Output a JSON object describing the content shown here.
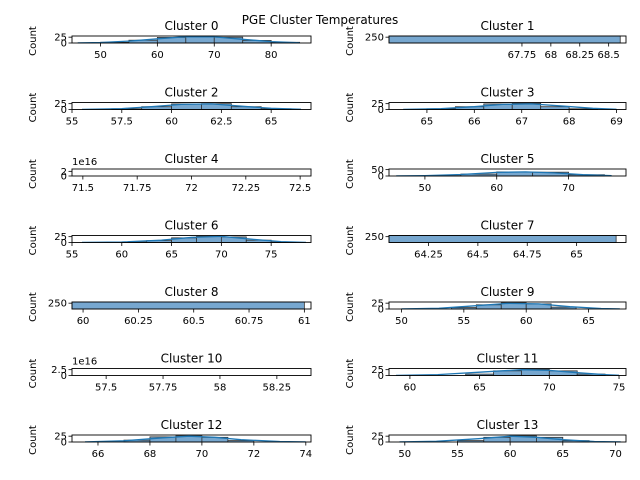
{
  "figure": {
    "suptitle": "PGE Cluster Temperatures"
  },
  "colors": {
    "bar_fill": "#77a7cf",
    "bar_stroke": "#303030",
    "kde": "#1f77b4",
    "axes": "#000000"
  },
  "chart_data": [
    {
      "type": "bar",
      "title": "Cluster 0",
      "ylabel": "Count",
      "xlim": [
        45,
        87
      ],
      "ylim": [
        0,
        30
      ],
      "xticks": [
        50,
        60,
        70,
        80
      ],
      "yticks": [
        0,
        25
      ],
      "bins": [
        [
          50,
          55
        ],
        [
          55,
          60
        ],
        [
          60,
          65
        ],
        [
          65,
          70
        ],
        [
          70,
          75
        ],
        [
          75,
          80
        ],
        [
          80,
          85
        ]
      ],
      "values": [
        3,
        12,
        24,
        29,
        25,
        11,
        3
      ],
      "kde": [
        [
          46,
          0.5
        ],
        [
          50,
          2
        ],
        [
          55,
          8
        ],
        [
          60,
          18
        ],
        [
          65,
          27
        ],
        [
          70,
          26
        ],
        [
          75,
          16
        ],
        [
          80,
          6
        ],
        [
          85,
          1
        ]
      ]
    },
    {
      "type": "bar",
      "title": "Cluster 1",
      "ylabel": "Count",
      "xlim": [
        66.6,
        68.65
      ],
      "ylim": [
        0,
        300
      ],
      "xticks": [
        67.75,
        68.0,
        68.25,
        68.5
      ],
      "yticks": [
        250
      ],
      "bins": [
        [
          66.6,
          68.6
        ]
      ],
      "values": [
        300
      ],
      "kde": []
    },
    {
      "type": "bar",
      "title": "Cluster 2",
      "ylabel": "Count",
      "xlim": [
        55,
        67
      ],
      "ylim": [
        0,
        30
      ],
      "xticks": [
        55.0,
        57.5,
        60.0,
        62.5,
        65.0
      ],
      "yticks": [
        0,
        25
      ],
      "bins": [
        [
          57,
          58.5
        ],
        [
          58.5,
          60
        ],
        [
          60,
          61.5
        ],
        [
          61.5,
          63
        ],
        [
          63,
          64.5
        ],
        [
          64.5,
          66
        ]
      ],
      "values": [
        3,
        12,
        24,
        25,
        12,
        3
      ],
      "kde": [
        [
          55.5,
          0.5
        ],
        [
          57.5,
          4
        ],
        [
          59,
          12
        ],
        [
          60.5,
          22
        ],
        [
          62,
          24
        ],
        [
          63.5,
          14
        ],
        [
          65,
          5
        ],
        [
          66.5,
          1
        ]
      ]
    },
    {
      "type": "bar",
      "title": "Cluster 3",
      "ylabel": "Count",
      "xlim": [
        64.2,
        69.2
      ],
      "ylim": [
        0,
        30
      ],
      "xticks": [
        65,
        66,
        67,
        68,
        69
      ],
      "yticks": [
        0,
        25
      ],
      "bins": [
        [
          65,
          65.6
        ],
        [
          65.6,
          66.2
        ],
        [
          66.2,
          66.8
        ],
        [
          66.8,
          67.4
        ],
        [
          67.4,
          68
        ],
        [
          68,
          68.6
        ]
      ],
      "values": [
        3,
        12,
        24,
        26,
        12,
        3
      ],
      "kde": [
        [
          64.5,
          0.5
        ],
        [
          65.3,
          4
        ],
        [
          66,
          12
        ],
        [
          66.6,
          22
        ],
        [
          67.2,
          24
        ],
        [
          67.9,
          14
        ],
        [
          68.5,
          5
        ],
        [
          69,
          1
        ]
      ]
    },
    {
      "type": "bar",
      "title": "Cluster 4",
      "ylabel": "Count",
      "xlim": [
        71.45,
        72.55
      ],
      "ylim": [
        0,
        3e+16
      ],
      "xticks": [
        71.5,
        71.75,
        72.0,
        72.25,
        72.5
      ],
      "yticks": [
        0,
        2
      ],
      "offset_text": "1e16",
      "bins": [],
      "values": [],
      "kde": []
    },
    {
      "type": "bar",
      "title": "Cluster 5",
      "ylabel": "Count",
      "xlim": [
        45,
        78
      ],
      "ylim": [
        0,
        55
      ],
      "xticks": [
        50,
        60,
        70
      ],
      "yticks": [
        0,
        50
      ],
      "bins": [
        [
          50,
          55
        ],
        [
          55,
          60
        ],
        [
          60,
          65
        ],
        [
          65,
          70
        ],
        [
          70,
          75
        ]
      ],
      "values": [
        3,
        15,
        32,
        30,
        10
      ],
      "kde": [
        [
          46,
          0.5
        ],
        [
          50,
          3
        ],
        [
          55,
          12
        ],
        [
          60,
          28
        ],
        [
          64,
          32
        ],
        [
          68,
          24
        ],
        [
          72,
          10
        ],
        [
          76,
          2
        ]
      ]
    },
    {
      "type": "bar",
      "title": "Cluster 6",
      "ylabel": "Count",
      "xlim": [
        55,
        79
      ],
      "ylim": [
        0,
        30
      ],
      "xticks": [
        55,
        60,
        65,
        70,
        75
      ],
      "yticks": [
        0,
        25
      ],
      "bins": [
        [
          60,
          62.5
        ],
        [
          62.5,
          65
        ],
        [
          65,
          67.5
        ],
        [
          67.5,
          70
        ],
        [
          70,
          72.5
        ],
        [
          72.5,
          75
        ],
        [
          75,
          77.5
        ]
      ],
      "values": [
        2,
        8,
        20,
        26,
        24,
        10,
        2
      ],
      "kde": [
        [
          56,
          0.5
        ],
        [
          60,
          2
        ],
        [
          64,
          10
        ],
        [
          67,
          22
        ],
        [
          70,
          26
        ],
        [
          73,
          14
        ],
        [
          76,
          4
        ],
        [
          78.5,
          0.5
        ]
      ]
    },
    {
      "type": "bar",
      "title": "Cluster 7",
      "ylabel": "Count",
      "xlim": [
        64.05,
        65.25
      ],
      "ylim": [
        0,
        300
      ],
      "xticks": [
        64.25,
        64.5,
        64.75,
        65.0
      ],
      "yticks": [
        250
      ],
      "bins": [
        [
          64.05,
          65.2
        ]
      ],
      "values": [
        300
      ],
      "kde": []
    },
    {
      "type": "bar",
      "title": "Cluster 8",
      "ylabel": "Count",
      "xlim": [
        59.95,
        61.03
      ],
      "ylim": [
        0,
        300
      ],
      "xticks": [
        60.0,
        60.25,
        60.5,
        60.75,
        61.0
      ],
      "yticks": [
        250
      ],
      "bins": [
        [
          59.95,
          61.0
        ]
      ],
      "values": [
        300
      ],
      "kde": []
    },
    {
      "type": "bar",
      "title": "Cluster 9",
      "ylabel": "Count",
      "xlim": [
        49,
        68
      ],
      "ylim": [
        0,
        30
      ],
      "xticks": [
        50,
        55,
        60,
        65
      ],
      "yticks": [
        0,
        25
      ],
      "bins": [
        [
          54,
          56
        ],
        [
          56,
          58
        ],
        [
          58,
          60
        ],
        [
          60,
          62
        ],
        [
          62,
          64
        ]
      ],
      "values": [
        6,
        18,
        26,
        22,
        8
      ],
      "kde": [
        [
          50,
          0.5
        ],
        [
          53,
          3
        ],
        [
          56,
          14
        ],
        [
          58.5,
          24
        ],
        [
          61,
          22
        ],
        [
          63.5,
          10
        ],
        [
          66,
          2
        ],
        [
          67.5,
          0.5
        ]
      ]
    },
    {
      "type": "bar",
      "title": "Cluster 10",
      "ylabel": "Count",
      "xlim": [
        57.35,
        58.4
      ],
      "ylim": [
        0,
        3e+16
      ],
      "xticks": [
        57.5,
        57.75,
        58.0,
        58.25
      ],
      "yticks": [
        0.0,
        2.5
      ],
      "offset_text": "1e16",
      "bins": [],
      "values": [],
      "kde": []
    },
    {
      "type": "bar",
      "title": "Cluster 11",
      "ylabel": "Count",
      "xlim": [
        58.5,
        75.5
      ],
      "ylim": [
        0,
        30
      ],
      "xticks": [
        60,
        65,
        70,
        75
      ],
      "yticks": [
        0,
        25
      ],
      "bins": [
        [
          64,
          66
        ],
        [
          66,
          68
        ],
        [
          68,
          70
        ],
        [
          70,
          72
        ],
        [
          72,
          74
        ]
      ],
      "values": [
        6,
        20,
        26,
        20,
        6
      ],
      "kde": [
        [
          59,
          0.5
        ],
        [
          62,
          4
        ],
        [
          65,
          14
        ],
        [
          68,
          25
        ],
        [
          70,
          22
        ],
        [
          72,
          12
        ],
        [
          74,
          4
        ],
        [
          75,
          1
        ]
      ]
    },
    {
      "type": "bar",
      "title": "Cluster 12",
      "ylabel": "Count",
      "xlim": [
        65,
        74.2
      ],
      "ylim": [
        0,
        30
      ],
      "xticks": [
        66,
        68,
        70,
        72,
        74
      ],
      "yticks": [
        0,
        25
      ],
      "bins": [
        [
          67,
          68
        ],
        [
          68,
          69
        ],
        [
          69,
          70
        ],
        [
          70,
          71
        ],
        [
          71,
          72
        ]
      ],
      "values": [
        8,
        22,
        26,
        20,
        6
      ],
      "kde": [
        [
          65.5,
          0.5
        ],
        [
          67,
          5
        ],
        [
          68.5,
          18
        ],
        [
          69.5,
          25
        ],
        [
          70.5,
          20
        ],
        [
          71.5,
          10
        ],
        [
          73,
          2
        ],
        [
          74,
          0.5
        ]
      ]
    },
    {
      "type": "bar",
      "title": "Cluster 13",
      "ylabel": "Count",
      "xlim": [
        48.5,
        71
      ],
      "ylim": [
        0,
        30
      ],
      "xticks": [
        50,
        55,
        60,
        65,
        70
      ],
      "yticks": [
        0,
        25
      ],
      "bins": [
        [
          55,
          57.5
        ],
        [
          57.5,
          60
        ],
        [
          60,
          62.5
        ],
        [
          62.5,
          65
        ],
        [
          65,
          67.5
        ]
      ],
      "values": [
        6,
        20,
        26,
        20,
        6
      ],
      "kde": [
        [
          49.5,
          0.5
        ],
        [
          53,
          3
        ],
        [
          57,
          14
        ],
        [
          60,
          25
        ],
        [
          62.5,
          20
        ],
        [
          65,
          10
        ],
        [
          68,
          2
        ],
        [
          70.5,
          0.5
        ]
      ]
    }
  ]
}
